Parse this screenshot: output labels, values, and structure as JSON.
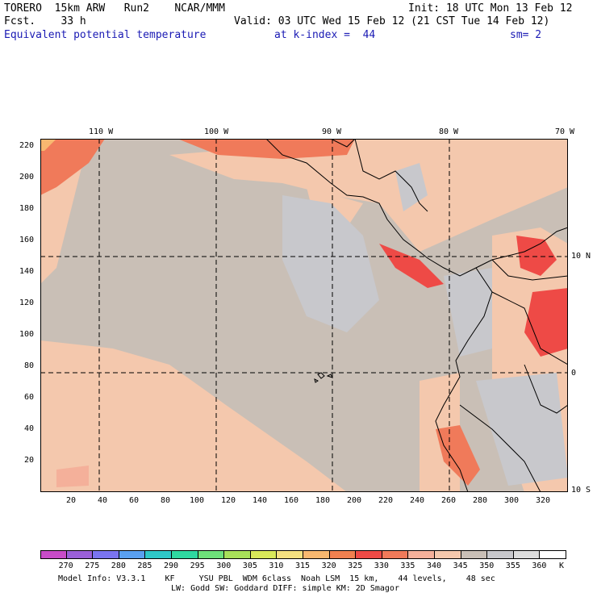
{
  "header": {
    "model_line": "TORERO  15km ARW   Run2    NCAR/MMM",
    "init_line": "Init: 18 UTC Mon 13 Feb 12",
    "fcst_line": "Fcst.    33 h",
    "valid_line": "Valid: 03 UTC Wed 15 Feb 12 (21 CST Tue 14 Feb 12)",
    "field_name": "Equivalent potential temperature",
    "level_text": "at k-index =  44",
    "smooth_text": "sm= 2"
  },
  "map": {
    "top_lon_labels": [
      "110 W",
      "100 W",
      "90 W",
      "80 W",
      "70 W"
    ],
    "right_lat_labels": [
      "10 N",
      "0",
      "10 S"
    ],
    "y_ticks": [
      "220",
      "200",
      "180",
      "160",
      "140",
      "120",
      "100",
      "80",
      "60",
      "40",
      "20"
    ],
    "x_ticks": [
      "20",
      "40",
      "60",
      "80",
      "100",
      "120",
      "140",
      "160",
      "180",
      "200",
      "220",
      "240",
      "260",
      "280",
      "300",
      "320"
    ],
    "dominant_fill": "#c9bfb6",
    "warm_fill": "#f4c8ad",
    "hot_fill": "#f07a5a",
    "hottest_fill": "#ee4a46",
    "cool_fill": "#c8c8cc"
  },
  "colorbar": {
    "labels": [
      "270",
      "275",
      "280",
      "285",
      "290",
      "295",
      "300",
      "305",
      "310",
      "315",
      "320",
      "325",
      "330",
      "335",
      "340",
      "345",
      "350",
      "355",
      "360"
    ],
    "unit": "K",
    "colors": [
      "#c84cc8",
      "#9a60d8",
      "#7a74f0",
      "#5aa0f0",
      "#2fc8c8",
      "#2fd8a0",
      "#6ee07a",
      "#a8e05a",
      "#d8e85a",
      "#f4e080",
      "#f8b870",
      "#f08050",
      "#ee4a46",
      "#f07a5a",
      "#f4b09a",
      "#f4c8ad",
      "#c9bfb6",
      "#c8c8cc",
      "#dcdcdc",
      "#ffffff"
    ]
  },
  "footer": {
    "line1": "Model Info: V3.3.1    KF     YSU PBL  WDM 6class  Noah LSM  15 km,    44 levels,    48 sec",
    "line2": "LW: Godd SW: Goddard DIFF: simple KM: 2D Smagor"
  }
}
